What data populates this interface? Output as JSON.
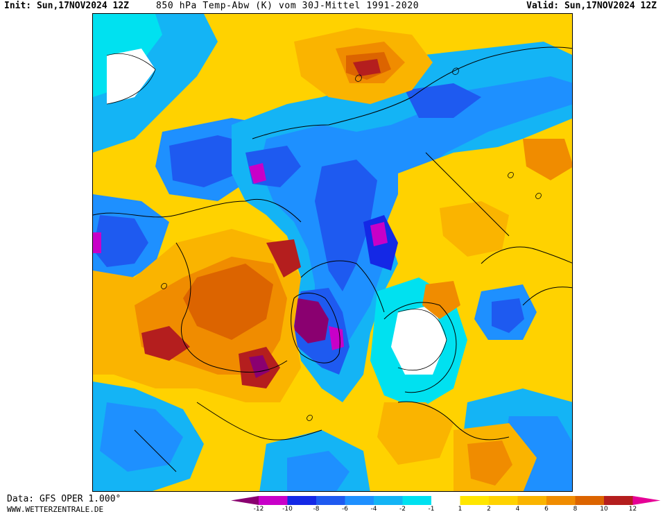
{
  "header": {
    "init": "Init: Sun,17NOV2024 12Z",
    "title": "850 hPa Temp-Abw (K) vom 30J-Mittel 1991-2020",
    "valid": "Valid: Sun,17NOV2024 12Z"
  },
  "footer": {
    "data_source": "Data: GFS OPER 1.000°",
    "website": "WWW.WETTERZENTRALE.DE"
  },
  "legend": {
    "unit": "K",
    "labels": [
      "-12",
      "-10",
      "-8",
      "-6",
      "-4",
      "-2",
      "-1",
      "1",
      "2",
      "4",
      "6",
      "8",
      "10",
      "12"
    ],
    "colors": {
      "lt_-12": "#8a0070",
      "-12_-10": "#c800c8",
      "-10_-8": "#1428e6",
      "-8_-6": "#1e5af0",
      "-6_-4": "#1e90ff",
      "-4_-2": "#14b4f5",
      "-2_-1": "#00e1f0",
      "-1_1": "#ffffff",
      "1_2": "#ffe600",
      "2_4": "#ffd200",
      "4_6": "#fab400",
      "6_8": "#f08c00",
      "8_10": "#dc6400",
      "10_12": "#b41e1e",
      "gt_12": "#e60096"
    }
  },
  "map": {
    "projection": "polar stereographic, north pole",
    "field": "850 hPa temperature anomaly vs 1991-2020 mean"
  }
}
